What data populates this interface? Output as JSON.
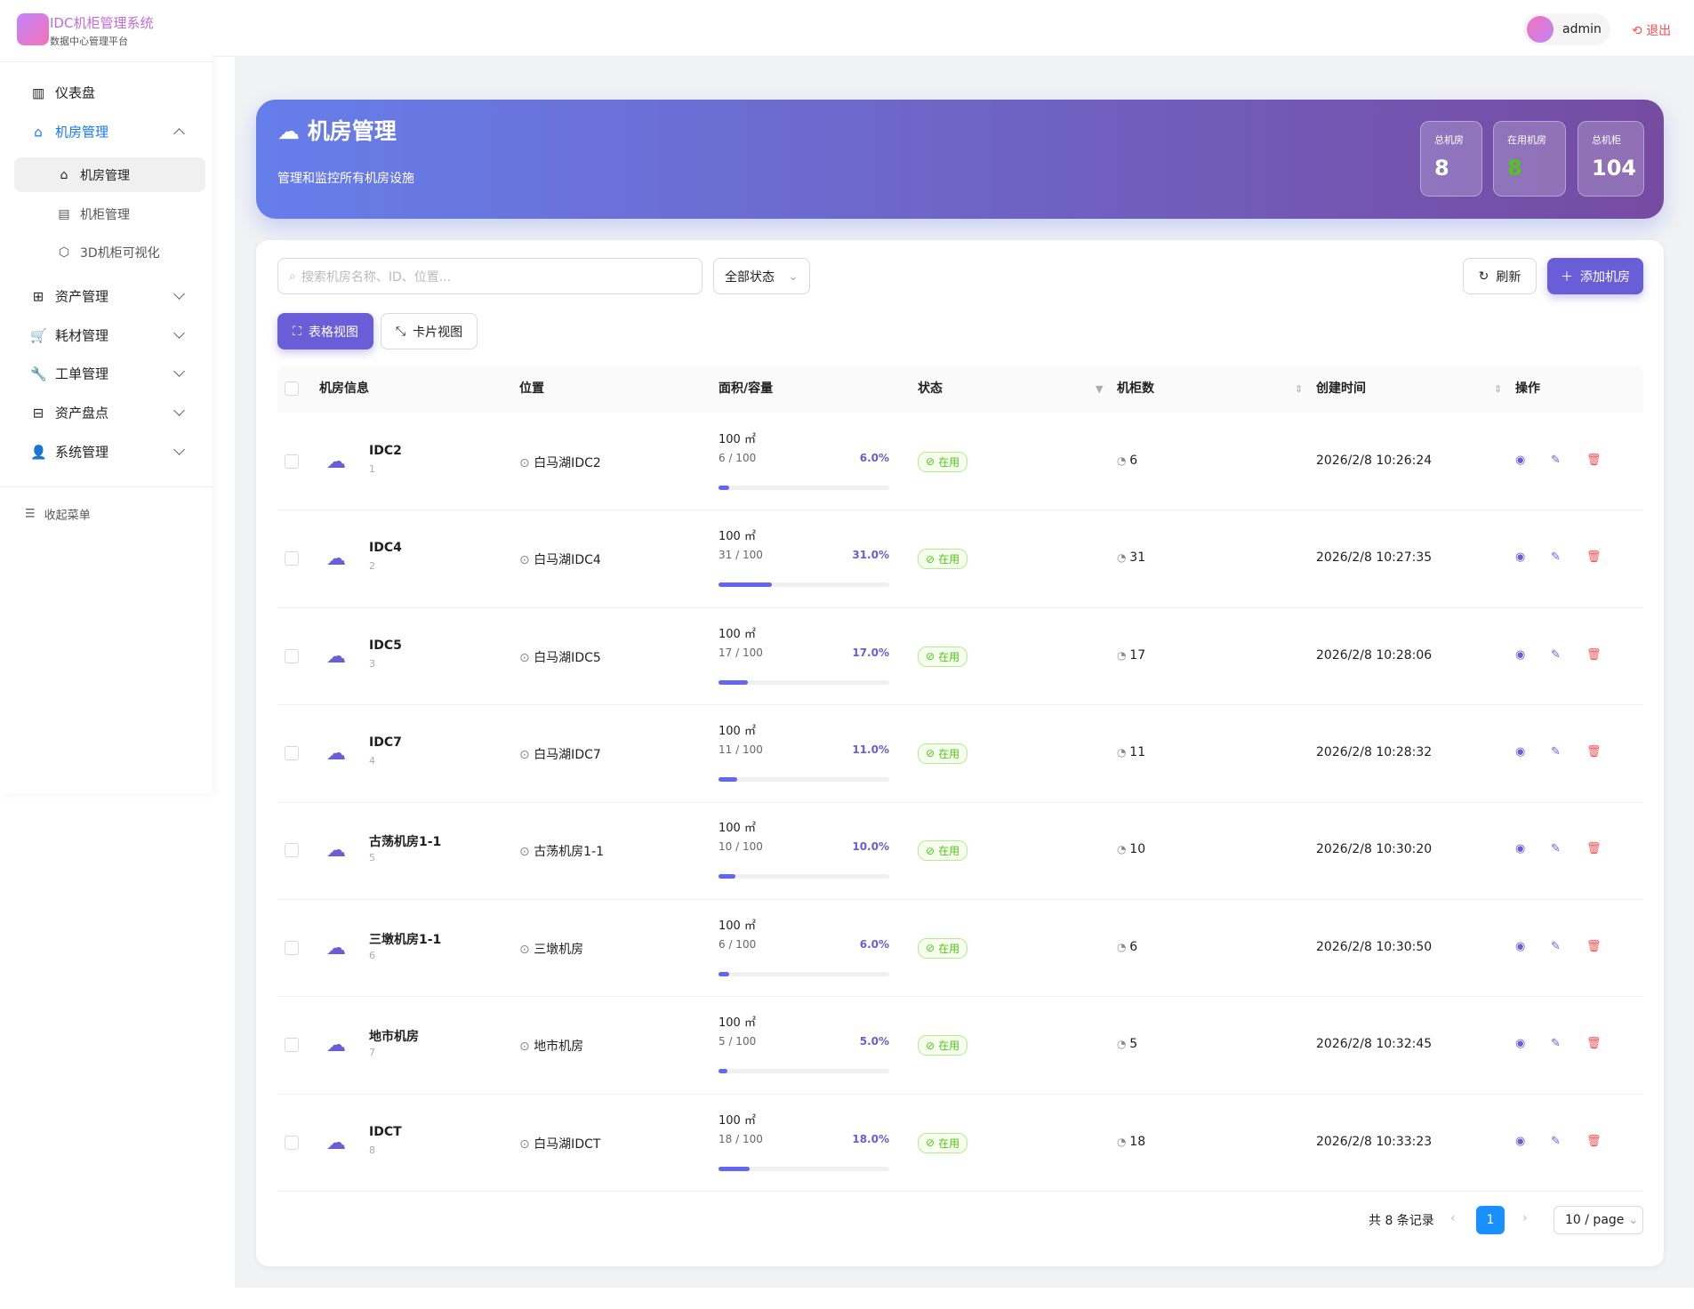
{
  "sidebar": {
    "title": "IDC机柜管理系统",
    "subtitle": "数据中心管理平台",
    "menu": [
      {
        "label": "仪表盘"
      },
      {
        "label": "机房管理",
        "children": [
          "机房管理",
          "机柜管理",
          "3D机柜可视化"
        ]
      },
      {
        "label": "资产管理"
      },
      {
        "label": "耗材管理"
      },
      {
        "label": "工单管理"
      },
      {
        "label": "资产盘点"
      },
      {
        "label": "系统管理"
      }
    ],
    "collapse": "收起菜单"
  },
  "header": {
    "user": "admin",
    "logout": "退出"
  },
  "banner": {
    "title": "机房管理",
    "subtitle": "管理和监控所有机房设施",
    "stats": [
      {
        "label": "总机房",
        "value": 8
      },
      {
        "label": "在用机房",
        "value": 8
      },
      {
        "label": "总机柜",
        "value": 104
      }
    ]
  },
  "toolbar": {
    "search_placeholder": "搜索机房名称、ID、位置...",
    "status_filter": "全部状态",
    "refresh": "刷新",
    "add": "添加机房",
    "table_view": "表格视图",
    "card_view": "卡片视图"
  },
  "table": {
    "columns": [
      "机房信息",
      "位置",
      "面积/容量",
      "状态",
      "机柜数",
      "创建时间",
      "操作"
    ],
    "rows": [
      {
        "name": "IDC2",
        "id": 1,
        "location": "白马湖IDC2",
        "area": "100 ㎡",
        "usage": "6 / 100",
        "percent": "6.0%",
        "status": "在用",
        "cabinets": 6,
        "created": "2026/2/8 10:26:24"
      },
      {
        "name": "IDC4",
        "id": 2,
        "location": "白马湖IDC4",
        "area": "100 ㎡",
        "usage": "31 / 100",
        "percent": "31.0%",
        "status": "在用",
        "cabinets": 31,
        "created": "2026/2/8 10:27:35"
      },
      {
        "name": "IDC5",
        "id": 3,
        "location": "白马湖IDC5",
        "area": "100 ㎡",
        "usage": "17 / 100",
        "percent": "17.0%",
        "status": "在用",
        "cabinets": 17,
        "created": "2026/2/8 10:28:06"
      },
      {
        "name": "IDC7",
        "id": 4,
        "location": "白马湖IDC7",
        "area": "100 ㎡",
        "usage": "11 / 100",
        "percent": "11.0%",
        "status": "在用",
        "cabinets": 11,
        "created": "2026/2/8 10:28:32"
      },
      {
        "name": "古荡机房1-1",
        "id": 5,
        "location": "古荡机房1-1",
        "area": "100 ㎡",
        "usage": "10 / 100",
        "percent": "10.0%",
        "status": "在用",
        "cabinets": 10,
        "created": "2026/2/8 10:30:20"
      },
      {
        "name": "三墩机房1-1",
        "id": 6,
        "location": "三墩机房",
        "area": "100 ㎡",
        "usage": "6 / 100",
        "percent": "6.0%",
        "status": "在用",
        "cabinets": 6,
        "created": "2026/2/8 10:30:50"
      },
      {
        "name": "地市机房",
        "id": 7,
        "location": "地市机房",
        "area": "100 ㎡",
        "usage": "5 / 100",
        "percent": "5.0%",
        "status": "在用",
        "cabinets": 5,
        "created": "2026/2/8 10:32:45"
      },
      {
        "name": "IDCT",
        "id": 8,
        "location": "白马湖IDCT",
        "area": "100 ㎡",
        "usage": "18 / 100",
        "percent": "18.0%",
        "status": "在用",
        "cabinets": 18,
        "created": "2026/2/8 10:33:23"
      }
    ]
  },
  "pagination": {
    "total": "共 8 条记录",
    "page": "1",
    "page_size": "10 / page"
  }
}
